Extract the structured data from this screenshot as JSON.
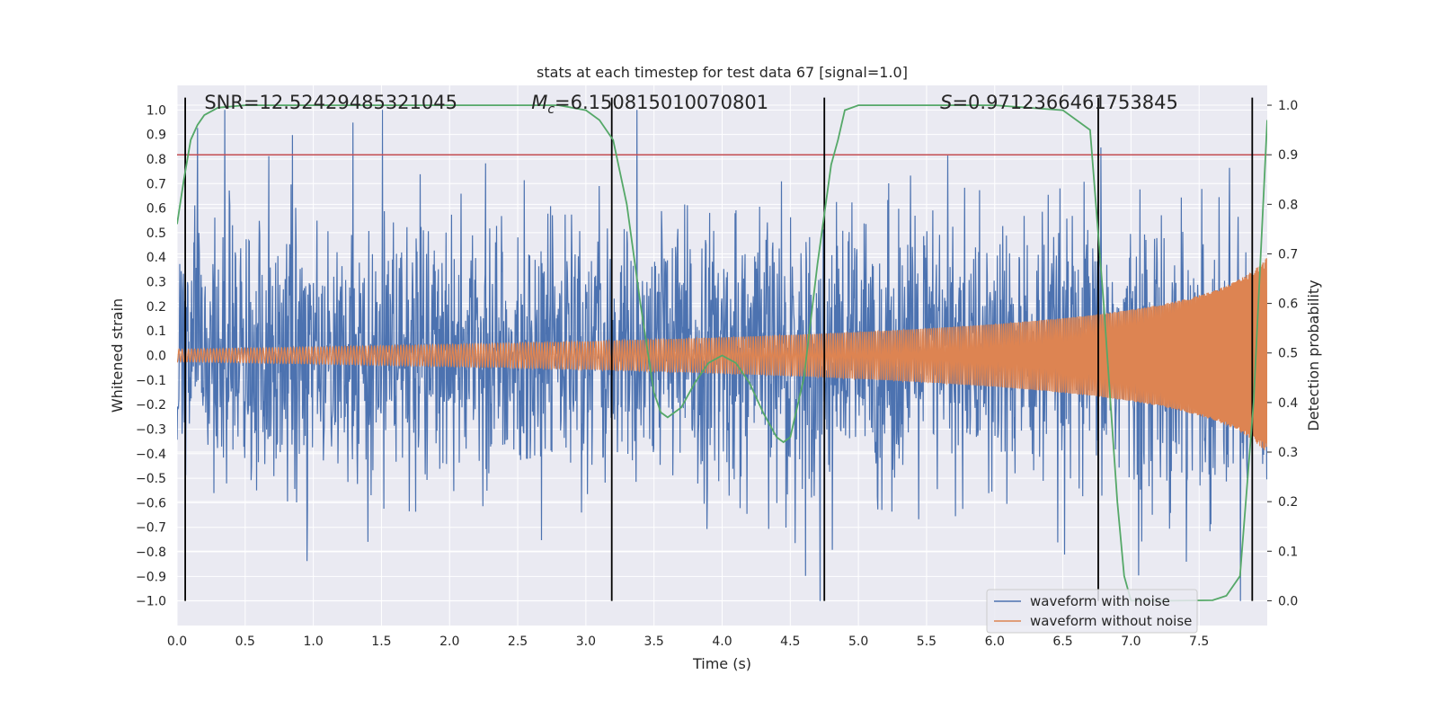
{
  "chart_data": {
    "type": "line",
    "title": "stats at each timestep for test data 67 [signal=1.0]",
    "xlabel": "Time (s)",
    "ylabel": "Whitened strain",
    "y2label": "Detection probability",
    "xlim": [
      0.0,
      8.0
    ],
    "ylim": [
      -1.1,
      1.1
    ],
    "y2lim": [
      -0.05,
      1.04
    ],
    "xticks": [
      0.0,
      0.5,
      1.0,
      1.5,
      2.0,
      2.5,
      3.0,
      3.5,
      4.0,
      4.5,
      5.0,
      5.5,
      6.0,
      6.5,
      7.0,
      7.5
    ],
    "yticks": [
      -1.0,
      -0.9,
      -0.8,
      -0.7,
      -0.6,
      -0.5,
      -0.4,
      -0.3,
      -0.2,
      -0.1,
      0.0,
      0.1,
      0.2,
      0.3,
      0.4,
      0.5,
      0.6,
      0.7,
      0.8,
      0.9,
      1.0
    ],
    "y2ticks": [
      0.0,
      0.1,
      0.2,
      0.3,
      0.4,
      0.5,
      0.6,
      0.7,
      0.8,
      0.9,
      1.0
    ],
    "grid": true,
    "legend_position": "bottom-right",
    "series": [
      {
        "name": "waveform with noise",
        "color": "#4c72b0",
        "axis": "left",
        "description_values": "dense whitened noise, envelope roughly between -1.0 and 1.0"
      },
      {
        "name": "waveform without noise",
        "color": "#dd8452",
        "axis": "left",
        "chirp_amplitude_start": 0.025,
        "chirp_amplitude_end": 0.4,
        "t_end": 8.0
      },
      {
        "axis": "right",
        "color": "#55a868",
        "x": [
          0.0,
          0.05,
          0.1,
          0.15,
          0.2,
          0.3,
          0.5,
          1.0,
          2.0,
          2.8,
          3.0,
          3.1,
          3.2,
          3.3,
          3.4,
          3.5,
          3.55,
          3.6,
          3.7,
          3.8,
          3.9,
          4.0,
          4.1,
          4.2,
          4.3,
          4.4,
          4.45,
          4.5,
          4.6,
          4.7,
          4.8,
          4.85,
          4.9,
          5.0,
          5.5,
          6.0,
          6.5,
          6.7,
          6.8,
          6.9,
          6.95,
          7.0,
          7.3,
          7.6,
          7.7,
          7.8,
          7.9,
          8.0
        ],
        "values": [
          0.76,
          0.85,
          0.93,
          0.96,
          0.98,
          0.995,
          1.0,
          1.0,
          1.0,
          1.0,
          0.99,
          0.97,
          0.93,
          0.8,
          0.6,
          0.42,
          0.38,
          0.37,
          0.39,
          0.44,
          0.48,
          0.495,
          0.48,
          0.44,
          0.38,
          0.33,
          0.32,
          0.33,
          0.45,
          0.68,
          0.88,
          0.93,
          0.99,
          1.0,
          1.0,
          1.0,
          0.99,
          0.95,
          0.6,
          0.2,
          0.05,
          0.0,
          0.0,
          0.001,
          0.01,
          0.05,
          0.4,
          0.97
        ]
      }
    ],
    "hlines": [
      {
        "y2": 0.9,
        "color": "#c44e52"
      }
    ],
    "vlines": [
      0.06,
      3.19,
      4.75,
      6.76,
      7.89
    ],
    "annotations": [
      {
        "text": "SNR=12.52429485321045",
        "x": 0.2
      },
      {
        "text_symbol": "M",
        "text_sub": "c",
        "text": "=6.150815010070801",
        "x": 2.6
      },
      {
        "text_symbol": "S",
        "text": "=0.9712366461753845",
        "x": 5.6
      }
    ]
  }
}
